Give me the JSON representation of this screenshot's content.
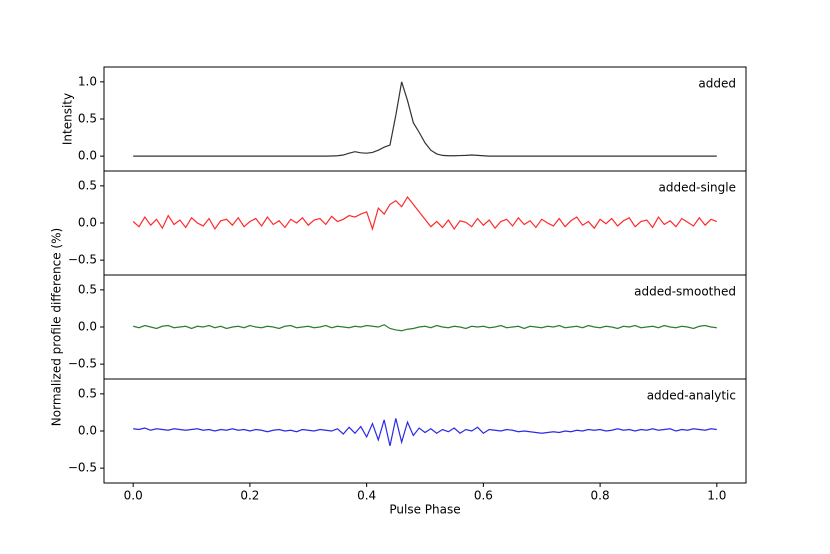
{
  "chart_data": [
    {
      "type": "line",
      "ylabel": "Intensity",
      "x": [
        0,
        0.01,
        0.02,
        0.03,
        0.04,
        0.05,
        0.06,
        0.07,
        0.08,
        0.09,
        0.1,
        0.11,
        0.12,
        0.13,
        0.14,
        0.15,
        0.16,
        0.17,
        0.18,
        0.19,
        0.2,
        0.21,
        0.22,
        0.23,
        0.24,
        0.25,
        0.26,
        0.27,
        0.28,
        0.29,
        0.3,
        0.31,
        0.32,
        0.33,
        0.34,
        0.35,
        0.36,
        0.37,
        0.38,
        0.39,
        0.4,
        0.41,
        0.42,
        0.43,
        0.44,
        0.45,
        0.46,
        0.47,
        0.48,
        0.49,
        0.5,
        0.51,
        0.52,
        0.53,
        0.54,
        0.55,
        0.56,
        0.57,
        0.58,
        0.59,
        0.6,
        0.61,
        0.62,
        0.63,
        0.64,
        0.65,
        0.66,
        0.67,
        0.68,
        0.69,
        0.7,
        0.71,
        0.72,
        0.73,
        0.74,
        0.75,
        0.76,
        0.77,
        0.78,
        0.79,
        0.8,
        0.81,
        0.82,
        0.83,
        0.84,
        0.85,
        0.86,
        0.87,
        0.88,
        0.89,
        0.9,
        0.91,
        0.92,
        0.93,
        0.94,
        0.95,
        0.96,
        0.97,
        0.98,
        0.99,
        1
      ],
      "series": [
        {
          "name": "added",
          "color": "#333333",
          "values": [
            0,
            0,
            0,
            0,
            0,
            0,
            0,
            0,
            0,
            0,
            0,
            0,
            0,
            0,
            0,
            0,
            0,
            0,
            0,
            0,
            0,
            0,
            0,
            0,
            0,
            0,
            0,
            0,
            0,
            0,
            0,
            0,
            0,
            0,
            0.002,
            0.005,
            0.015,
            0.04,
            0.06,
            0.045,
            0.04,
            0.05,
            0.08,
            0.12,
            0.15,
            0.55,
            1.0,
            0.75,
            0.45,
            0.32,
            0.18,
            0.08,
            0.03,
            0.01,
            0.005,
            0.005,
            0.008,
            0.01,
            0.015,
            0.01,
            0.005,
            0,
            0,
            0,
            0,
            0,
            0,
            0,
            0,
            0,
            0,
            0,
            0,
            0,
            0,
            0,
            0,
            0,
            0,
            0,
            0,
            0,
            0,
            0,
            0,
            0,
            0,
            0,
            0,
            0,
            0,
            0,
            0,
            0,
            0,
            0,
            0,
            0,
            0,
            0,
            0
          ]
        }
      ],
      "xlim": [
        -0.05,
        1.05
      ],
      "ylim": [
        -0.2,
        1.2
      ],
      "yticks": [
        {
          "value": 0,
          "label": "0.0"
        },
        0.5,
        {
          "value": 1,
          "label": "1.0"
        }
      ]
    },
    {
      "type": "line",
      "x": [
        0,
        0.01,
        0.02,
        0.03,
        0.04,
        0.05,
        0.06,
        0.07,
        0.08,
        0.09,
        0.1,
        0.11,
        0.12,
        0.13,
        0.14,
        0.15,
        0.16,
        0.17,
        0.18,
        0.19,
        0.2,
        0.21,
        0.22,
        0.23,
        0.24,
        0.25,
        0.26,
        0.27,
        0.28,
        0.29,
        0.3,
        0.31,
        0.32,
        0.33,
        0.34,
        0.35,
        0.36,
        0.37,
        0.38,
        0.39,
        0.4,
        0.41,
        0.42,
        0.43,
        0.44,
        0.45,
        0.46,
        0.47,
        0.48,
        0.49,
        0.5,
        0.51,
        0.52,
        0.53,
        0.54,
        0.55,
        0.56,
        0.57,
        0.58,
        0.59,
        0.6,
        0.61,
        0.62,
        0.63,
        0.64,
        0.65,
        0.66,
        0.67,
        0.68,
        0.69,
        0.7,
        0.71,
        0.72,
        0.73,
        0.74,
        0.75,
        0.76,
        0.77,
        0.78,
        0.79,
        0.8,
        0.81,
        0.82,
        0.83,
        0.84,
        0.85,
        0.86,
        0.87,
        0.88,
        0.89,
        0.9,
        0.91,
        0.92,
        0.93,
        0.94,
        0.95,
        0.96,
        0.97,
        0.98,
        0.99,
        1
      ],
      "series": [
        {
          "name": "added-single",
          "color": "#ff2a2a",
          "values": [
            0.02,
            -0.05,
            0.08,
            -0.03,
            0.05,
            -0.07,
            0.1,
            -0.02,
            0.04,
            -0.06,
            0.07,
            0.0,
            -0.04,
            0.06,
            -0.08,
            0.03,
            0.05,
            -0.03,
            0.07,
            -0.05,
            0.02,
            0.06,
            -0.04,
            0.08,
            -0.02,
            0.03,
            -0.06,
            0.05,
            0.0,
            0.07,
            -0.03,
            0.04,
            0.06,
            -0.02,
            0.09,
            0.02,
            0.05,
            0.1,
            0.08,
            0.12,
            0.15,
            -0.08,
            0.2,
            0.12,
            0.25,
            0.3,
            0.22,
            0.35,
            0.25,
            0.15,
            0.05,
            -0.05,
            0.02,
            -0.06,
            0.04,
            -0.08,
            0.03,
            0.01,
            -0.05,
            0.06,
            -0.03,
            0.04,
            -0.07,
            0.02,
            0.05,
            -0.04,
            0.07,
            -0.02,
            0.03,
            -0.06,
            0.05,
            0.0,
            -0.04,
            0.06,
            -0.05,
            0.03,
            0.08,
            -0.03,
            0.02,
            -0.07,
            0.05,
            -0.01,
            0.06,
            -0.04,
            0.03,
            0.07,
            -0.05,
            0.02,
            0.04,
            -0.06,
            0.08,
            -0.02,
            0.03,
            -0.05,
            0.06,
            0.01,
            -0.04,
            0.07,
            -0.03,
            0.05,
            0.02
          ]
        }
      ],
      "xlim": [
        -0.05,
        1.05
      ],
      "ylim": [
        -0.7,
        0.7
      ],
      "yticks": [
        {
          "value": -0.5,
          "label": "−0.5"
        },
        {
          "value": 0,
          "label": "0.0"
        },
        0.5
      ]
    },
    {
      "type": "line",
      "ylabel": "Normalized profile difference (%)",
      "x": [
        0,
        0.01,
        0.02,
        0.03,
        0.04,
        0.05,
        0.06,
        0.07,
        0.08,
        0.09,
        0.1,
        0.11,
        0.12,
        0.13,
        0.14,
        0.15,
        0.16,
        0.17,
        0.18,
        0.19,
        0.2,
        0.21,
        0.22,
        0.23,
        0.24,
        0.25,
        0.26,
        0.27,
        0.28,
        0.29,
        0.3,
        0.31,
        0.32,
        0.33,
        0.34,
        0.35,
        0.36,
        0.37,
        0.38,
        0.39,
        0.4,
        0.41,
        0.42,
        0.43,
        0.44,
        0.45,
        0.46,
        0.47,
        0.48,
        0.49,
        0.5,
        0.51,
        0.52,
        0.53,
        0.54,
        0.55,
        0.56,
        0.57,
        0.58,
        0.59,
        0.6,
        0.61,
        0.62,
        0.63,
        0.64,
        0.65,
        0.66,
        0.67,
        0.68,
        0.69,
        0.7,
        0.71,
        0.72,
        0.73,
        0.74,
        0.75,
        0.76,
        0.77,
        0.78,
        0.79,
        0.8,
        0.81,
        0.82,
        0.83,
        0.84,
        0.85,
        0.86,
        0.87,
        0.88,
        0.89,
        0.9,
        0.91,
        0.92,
        0.93,
        0.94,
        0.95,
        0.96,
        0.97,
        0.98,
        0.99,
        1
      ],
      "series": [
        {
          "name": "added-smoothed",
          "color": "#2e7d2e",
          "values": [
            0.01,
            -0.01,
            0.02,
            0.0,
            -0.02,
            0.01,
            0.02,
            -0.01,
            0.0,
            0.01,
            -0.02,
            0.01,
            0.0,
            0.02,
            -0.01,
            0.01,
            -0.02,
            0.0,
            0.01,
            -0.01,
            0.02,
            0.0,
            -0.01,
            0.01,
            0.0,
            -0.02,
            0.01,
            0.02,
            -0.01,
            0.0,
            0.01,
            -0.01,
            0.0,
            0.02,
            -0.01,
            0.01,
            0.0,
            -0.01,
            0.01,
            0.0,
            0.02,
            0.01,
            0.0,
            0.03,
            -0.02,
            -0.04,
            -0.05,
            -0.03,
            -0.02,
            0.0,
            0.01,
            -0.01,
            0.02,
            0.0,
            -0.01,
            0.01,
            0.0,
            -0.02,
            0.01,
            0.0,
            0.01,
            -0.01,
            0.0,
            0.02,
            -0.01,
            0.0,
            0.01,
            -0.02,
            0.01,
            0.0,
            -0.01,
            0.01,
            0.0,
            0.02,
            -0.01,
            0.0,
            0.01,
            -0.01,
            0.02,
            0.0,
            -0.01,
            0.01,
            0.0,
            -0.02,
            0.01,
            0.0,
            0.02,
            -0.01,
            0.0,
            0.01,
            -0.01,
            0.02,
            0.0,
            -0.01,
            0.01,
            0.0,
            -0.02,
            0.01,
            0.02,
            0.0,
            -0.01
          ]
        }
      ],
      "xlim": [
        -0.05,
        1.05
      ],
      "ylim": [
        -0.7,
        0.7
      ],
      "yticks": [
        {
          "value": -0.5,
          "label": "−0.5"
        },
        {
          "value": 0,
          "label": "0.0"
        },
        0.5
      ]
    },
    {
      "type": "line",
      "xlabel": "Pulse Phase",
      "x": [
        0,
        0.01,
        0.02,
        0.03,
        0.04,
        0.05,
        0.06,
        0.07,
        0.08,
        0.09,
        0.1,
        0.11,
        0.12,
        0.13,
        0.14,
        0.15,
        0.16,
        0.17,
        0.18,
        0.19,
        0.2,
        0.21,
        0.22,
        0.23,
        0.24,
        0.25,
        0.26,
        0.27,
        0.28,
        0.29,
        0.3,
        0.31,
        0.32,
        0.33,
        0.34,
        0.35,
        0.36,
        0.37,
        0.38,
        0.39,
        0.4,
        0.41,
        0.42,
        0.43,
        0.44,
        0.45,
        0.46,
        0.47,
        0.48,
        0.49,
        0.5,
        0.51,
        0.52,
        0.53,
        0.54,
        0.55,
        0.56,
        0.57,
        0.58,
        0.59,
        0.6,
        0.61,
        0.62,
        0.63,
        0.64,
        0.65,
        0.66,
        0.67,
        0.68,
        0.69,
        0.7,
        0.71,
        0.72,
        0.73,
        0.74,
        0.75,
        0.76,
        0.77,
        0.78,
        0.79,
        0.8,
        0.81,
        0.82,
        0.83,
        0.84,
        0.85,
        0.86,
        0.87,
        0.88,
        0.89,
        0.9,
        0.91,
        0.92,
        0.93,
        0.94,
        0.95,
        0.96,
        0.97,
        0.98,
        0.99,
        1
      ],
      "series": [
        {
          "name": "added-analytic",
          "color": "#2a2ae6",
          "values": [
            0.03,
            0.02,
            0.04,
            0.01,
            0.03,
            0.02,
            0.01,
            0.03,
            0.02,
            0.01,
            0.02,
            0.03,
            0.01,
            0.02,
            0.0,
            0.02,
            0.01,
            0.03,
            0.01,
            0.02,
            0.0,
            0.02,
            0.01,
            -0.01,
            0.01,
            0.02,
            0.0,
            0.01,
            -0.01,
            0.02,
            0.01,
            0.0,
            0.02,
            0.01,
            0.0,
            0.03,
            -0.04,
            0.05,
            -0.03,
            0.06,
            -0.08,
            0.1,
            -0.12,
            0.15,
            -0.2,
            0.17,
            -0.15,
            0.12,
            -0.06,
            0.04,
            -0.02,
            0.03,
            -0.03,
            0.02,
            -0.01,
            0.04,
            -0.03,
            0.02,
            0.0,
            0.05,
            -0.03,
            0.02,
            0.01,
            0.0,
            0.02,
            0.01,
            -0.01,
            0.0,
            -0.01,
            -0.02,
            -0.03,
            -0.02,
            -0.01,
            -0.02,
            0.0,
            -0.01,
            0.01,
            0.0,
            0.02,
            0.01,
            0.02,
            0.0,
            0.01,
            0.03,
            0.01,
            0.02,
            0.0,
            0.02,
            0.01,
            0.03,
            0.01,
            0.02,
            0.03,
            0.0,
            0.02,
            0.01,
            0.03,
            0.02,
            0.01,
            0.03,
            0.02
          ]
        }
      ],
      "xlim": [
        -0.05,
        1.05
      ],
      "ylim": [
        -0.7,
        0.7
      ],
      "yticks": [
        {
          "value": -0.5,
          "label": "−0.5"
        },
        {
          "value": 0,
          "label": "0.0"
        },
        0.5
      ],
      "xticks": [
        {
          "value": 0,
          "label": "0.0"
        },
        0.2,
        0.4,
        0.6,
        0.8,
        {
          "value": 1,
          "label": "1.0"
        }
      ]
    }
  ]
}
